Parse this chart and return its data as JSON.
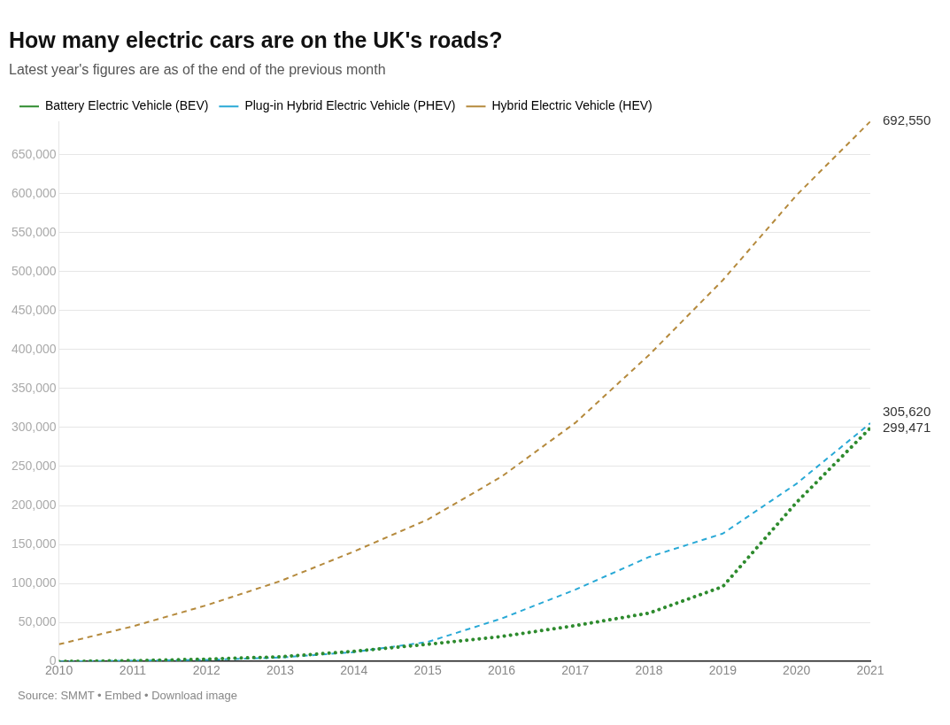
{
  "chart_data": {
    "type": "line",
    "title": "How many electric cars are on the UK's roads?",
    "subtitle": "Latest year's figures are as of the end of the previous month",
    "x": [
      2010,
      2011,
      2012,
      2013,
      2014,
      2015,
      2016,
      2017,
      2018,
      2019,
      2020,
      2021
    ],
    "series": [
      {
        "name": "Battery Electric Vehicle (BEV)",
        "color": "#2e8b2e",
        "line_style": "dotted",
        "values": [
          0,
          1000,
          3000,
          6000,
          13000,
          22000,
          32000,
          46000,
          62000,
          96000,
          204000,
          299471
        ],
        "value_labels": [
          null,
          null,
          null,
          null,
          null,
          null,
          null,
          null,
          null,
          null,
          null,
          "299,471"
        ]
      },
      {
        "name": "Plug-in Hybrid Electric Vehicle (PHEV)",
        "color": "#29a9d6",
        "line_style": "dashed",
        "values": [
          0,
          1000,
          2000,
          5000,
          12000,
          25000,
          55000,
          92000,
          134000,
          164000,
          228000,
          305620
        ],
        "value_labels": [
          null,
          null,
          null,
          null,
          null,
          null,
          null,
          null,
          null,
          null,
          null,
          "305,620"
        ]
      },
      {
        "name": "Hybrid Electric Vehicle (HEV)",
        "color": "#b58a3d",
        "line_style": "dashed",
        "values": [
          22000,
          45000,
          72000,
          103000,
          141000,
          182000,
          237000,
          306000,
          393000,
          489000,
          598000,
          692550
        ],
        "value_labels": [
          null,
          null,
          null,
          null,
          null,
          null,
          null,
          null,
          null,
          null,
          null,
          "692,550"
        ]
      }
    ],
    "xlim": [
      2010,
      2021
    ],
    "xticks": [
      2010,
      2011,
      2012,
      2013,
      2014,
      2015,
      2016,
      2017,
      2018,
      2019,
      2020,
      2021
    ],
    "ylim": [
      0,
      692550
    ],
    "yticks": [
      0,
      {
        "value": 50000,
        "label": "50,000"
      },
      {
        "value": 100000,
        "label": "100,000"
      },
      {
        "value": 150000,
        "label": "150,000"
      },
      {
        "value": 200000,
        "label": "200,000"
      },
      {
        "value": 250000,
        "label": "250,000"
      },
      {
        "value": 300000,
        "label": "300,000"
      },
      {
        "value": 350000,
        "label": "350,000"
      },
      {
        "value": 400000,
        "label": "400,000"
      },
      {
        "value": 450000,
        "label": "450,000"
      },
      {
        "value": 500000,
        "label": "500,000"
      },
      {
        "value": 550000,
        "label": "550,000"
      },
      {
        "value": 600000,
        "label": "600,000"
      },
      {
        "value": 650000,
        "label": "650,000"
      }
    ],
    "grid": "y",
    "legend": "top left",
    "marker": "none",
    "annotations": [
      "Source: SMMT • Embed • Download image"
    ]
  }
}
